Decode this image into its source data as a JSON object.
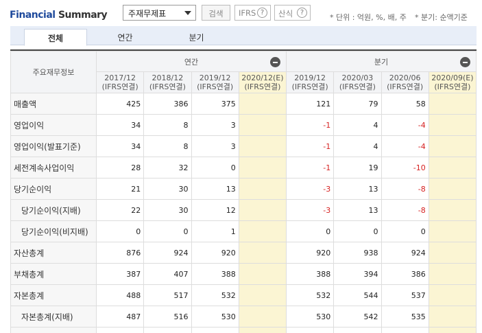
{
  "header": {
    "brand_part1": "Financial",
    "brand_part2": " Summary",
    "select_value": "주재무제표",
    "search_label": "검색",
    "ifrs_label": "IFRS",
    "calc_label": "산식",
    "help_symbol": "?",
    "unit_note": "* 단위 : 억원, %, 배, 주",
    "quarter_note": "* 분기: 순액기준"
  },
  "tabs": [
    "전체",
    "연간",
    "분기"
  ],
  "table": {
    "row_header": "주요재무정보",
    "groups": [
      "연간",
      "분기"
    ],
    "periods": [
      {
        "label": "2017/12",
        "basis": "(IFRS연결)",
        "est": false
      },
      {
        "label": "2018/12",
        "basis": "(IFRS연결)",
        "est": false
      },
      {
        "label": "2019/12",
        "basis": "(IFRS연결)",
        "est": false
      },
      {
        "label": "2020/12(E)",
        "basis": "(IFRS연결)",
        "est": true
      },
      {
        "label": "2019/12",
        "basis": "(IFRS연결)",
        "est": false
      },
      {
        "label": "2020/03",
        "basis": "(IFRS연결)",
        "est": false
      },
      {
        "label": "2020/06",
        "basis": "(IFRS연결)",
        "est": false
      },
      {
        "label": "2020/09(E)",
        "basis": "(IFRS연결)",
        "est": true
      }
    ],
    "rows": [
      {
        "label": "매출액",
        "sub": false,
        "values": [
          "425",
          "386",
          "375",
          "",
          "121",
          "79",
          "58",
          ""
        ]
      },
      {
        "label": "영업이익",
        "sub": false,
        "values": [
          "34",
          "8",
          "3",
          "",
          "-1",
          "4",
          "-4",
          ""
        ]
      },
      {
        "label": "영업이익(발표기준)",
        "sub": false,
        "values": [
          "34",
          "8",
          "3",
          "",
          "-1",
          "4",
          "-4",
          ""
        ]
      },
      {
        "label": "세전계속사업이익",
        "sub": false,
        "values": [
          "28",
          "32",
          "0",
          "",
          "-1",
          "19",
          "-10",
          ""
        ]
      },
      {
        "label": "당기순이익",
        "sub": false,
        "values": [
          "21",
          "30",
          "13",
          "",
          "-3",
          "13",
          "-8",
          ""
        ]
      },
      {
        "label": "당기순이익(지배)",
        "sub": true,
        "values": [
          "22",
          "30",
          "12",
          "",
          "-3",
          "13",
          "-8",
          ""
        ]
      },
      {
        "label": "당기순이익(비지배)",
        "sub": true,
        "values": [
          "0",
          "0",
          "1",
          "",
          "0",
          "0",
          "0",
          ""
        ]
      },
      {
        "label": "자산총계",
        "sub": false,
        "values": [
          "876",
          "924",
          "920",
          "",
          "920",
          "938",
          "924",
          ""
        ]
      },
      {
        "label": "부채총계",
        "sub": false,
        "values": [
          "387",
          "407",
          "388",
          "",
          "388",
          "394",
          "386",
          ""
        ]
      },
      {
        "label": "자본총계",
        "sub": false,
        "values": [
          "488",
          "517",
          "532",
          "",
          "532",
          "544",
          "537",
          ""
        ]
      },
      {
        "label": "자본총계(지배)",
        "sub": true,
        "values": [
          "487",
          "516",
          "530",
          "",
          "530",
          "542",
          "535",
          ""
        ]
      },
      {
        "label": "",
        "sub": false,
        "values": [
          "",
          "",
          "",
          "",
          "",
          "",
          "",
          ""
        ]
      }
    ]
  },
  "colors": {
    "brand_blue": "#1f4a9c",
    "estimate_bg": "#fbf5d3",
    "negative": "#d62020"
  },
  "icons": [
    "collapse-minus-icon",
    "help-question-icon",
    "dropdown-chevron-icon"
  ]
}
